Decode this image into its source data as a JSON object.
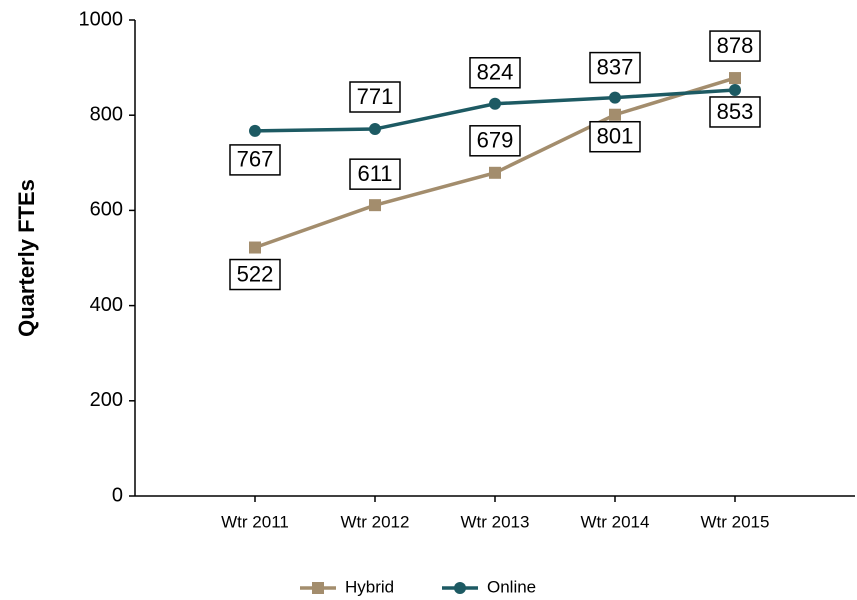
{
  "chart_data": {
    "type": "line",
    "y_label": "Quarterly FTEs",
    "categories": [
      "Wtr 2011",
      "Wtr 2012",
      "Wtr 2013",
      "Wtr 2014",
      "Wtr 2015"
    ],
    "series": [
      {
        "name": "Hybrid",
        "color": "#a38d6d",
        "marker": "square",
        "values": [
          522,
          611,
          679,
          801,
          878
        ]
      },
      {
        "name": "Online",
        "color": "#1d5a63",
        "marker": "circle",
        "values": [
          767,
          771,
          824,
          837,
          853
        ]
      }
    ],
    "ylim": [
      0,
      1000
    ],
    "yticks": [
      0,
      200,
      400,
      600,
      800,
      1000
    ],
    "grid": false,
    "legend": "bottom",
    "data_labels": true
  }
}
